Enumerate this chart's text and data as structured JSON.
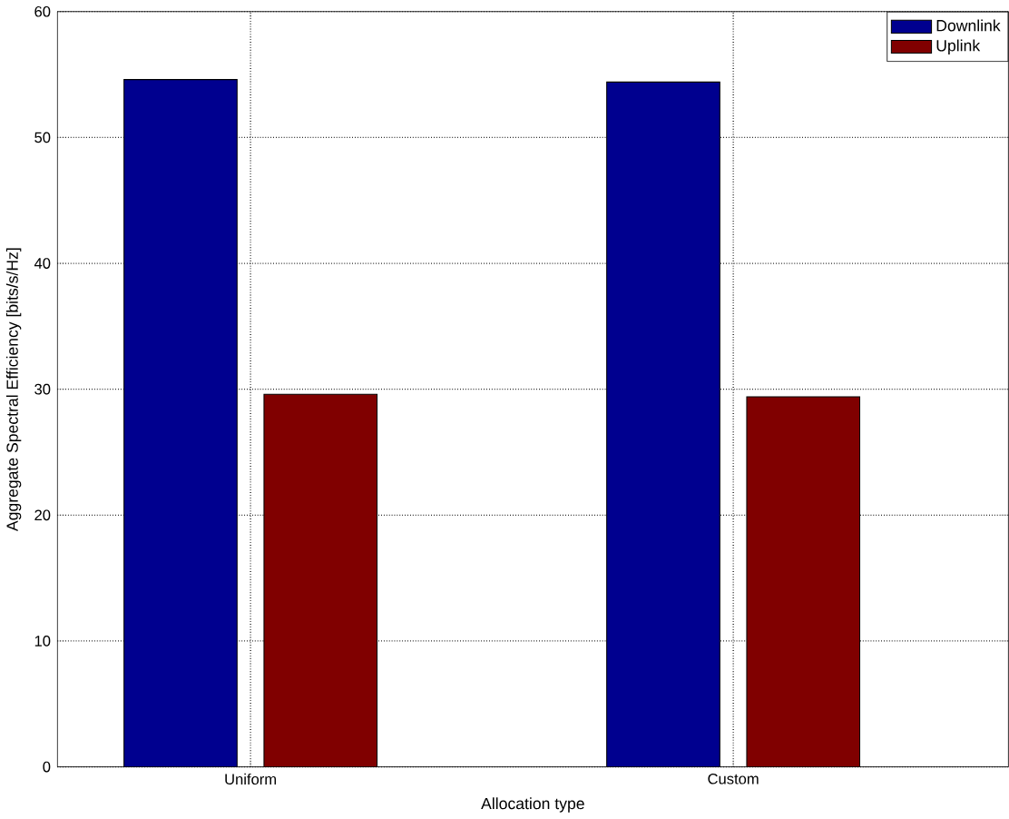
{
  "chart_data": {
    "type": "bar",
    "xlabel": "Allocation type",
    "ylabel": "Aggregate Spectral Efficiency [bits/s/Hz]",
    "categories": [
      "Uniform",
      "Custom"
    ],
    "series": [
      {
        "name": "Downlink",
        "color": "#00008f",
        "values": [
          54.6,
          54.4
        ]
      },
      {
        "name": "Uplink",
        "color": "#800000",
        "values": [
          29.6,
          29.4
        ]
      }
    ],
    "ylim": [
      0,
      60
    ],
    "yticks": [
      0,
      10,
      20,
      30,
      40,
      50,
      60
    ],
    "grid": true,
    "legend": "top right"
  }
}
